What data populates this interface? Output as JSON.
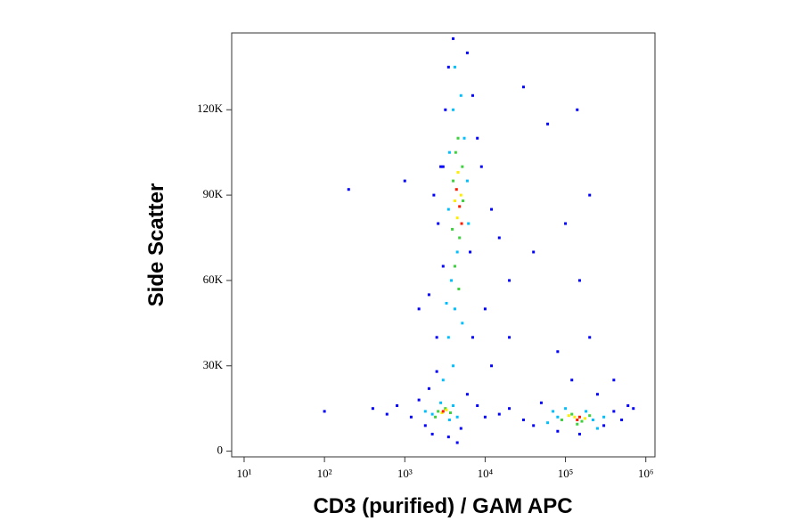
{
  "chart_data": {
    "type": "scatter",
    "xlabel": "CD3 (purified) / GAM APC",
    "ylabel": "Side Scatter",
    "xscale": "log",
    "xlim": [
      7,
      1300000
    ],
    "ylim": [
      -2000,
      147000
    ],
    "xticks": [
      {
        "value": 10,
        "label": "10¹"
      },
      {
        "value": 100,
        "label": "10²"
      },
      {
        "value": 1000,
        "label": "10³"
      },
      {
        "value": 10000,
        "label": "10⁴"
      },
      {
        "value": 100000,
        "label": "10⁵"
      },
      {
        "value": 1000000,
        "label": "10⁶"
      }
    ],
    "yticks": [
      0,
      {
        "value": 30000,
        "label": "30K"
      },
      {
        "value": 60000,
        "label": "60K"
      },
      {
        "value": 90000,
        "label": "90K"
      },
      {
        "value": 120000,
        "label": "120K"
      }
    ],
    "series": [
      {
        "color": "#0000ff",
        "x": [
          400,
          600,
          800,
          1200,
          1500,
          1800,
          2000,
          2200,
          3500,
          5000,
          6000,
          8000,
          10000,
          15000,
          20000,
          30000,
          40000,
          50000,
          300000,
          400000,
          500000,
          600000,
          80000,
          150000,
          250000,
          2500,
          2000,
          3000,
          2600,
          2800,
          3200,
          3500,
          4000,
          6000,
          7000,
          8000,
          9000,
          12000,
          15000,
          20000,
          10000,
          7000,
          12000,
          2500,
          3000,
          6500,
          2300,
          1500,
          200,
          1000,
          140000,
          100000,
          200000,
          60000,
          30000,
          150000,
          200000,
          80000,
          120000,
          400000,
          700000,
          100,
          4500,
          20000,
          40000
        ],
        "values": [
          15000,
          13000,
          16000,
          12000,
          18000,
          9000,
          22000,
          6000,
          5000,
          8000,
          20000,
          16000,
          12000,
          13000,
          15000,
          11000,
          9000,
          17000,
          9000,
          14000,
          11000,
          16000,
          7000,
          6000,
          20000,
          40000,
          55000,
          65000,
          80000,
          100000,
          120000,
          135000,
          145000,
          140000,
          125000,
          110000,
          100000,
          85000,
          75000,
          60000,
          50000,
          40000,
          30000,
          28000,
          100000,
          70000,
          90000,
          50000,
          92000,
          95000,
          120000,
          80000,
          90000,
          115000,
          128000,
          60000,
          40000,
          35000,
          25000,
          25000,
          15000,
          14000,
          3000,
          40000,
          70000
        ]
      },
      {
        "color": "#00bfff",
        "x": [
          2200,
          2800,
          3600,
          4000,
          1800,
          4500,
          3000,
          4000,
          3500,
          4200,
          3800,
          4500,
          3600,
          5500,
          4000,
          5000,
          6000,
          3500,
          6200,
          100000,
          180000,
          220000,
          80000,
          300000,
          60000,
          250000,
          4200,
          5200,
          3300,
          70000
        ],
        "values": [
          13000,
          17000,
          11000,
          16000,
          14000,
          12000,
          25000,
          30000,
          40000,
          50000,
          60000,
          70000,
          105000,
          110000,
          120000,
          125000,
          95000,
          85000,
          80000,
          15000,
          14000,
          11000,
          12000,
          12000,
          10000,
          8000,
          135000,
          45000,
          52000,
          14000
        ]
      },
      {
        "color": "#3ed13e",
        "x": [
          2600,
          3200,
          2400,
          3700,
          4200,
          4800,
          3900,
          4000,
          5200,
          4600,
          4300,
          5300,
          120000,
          160000,
          200000,
          90000,
          140000,
          4700
        ],
        "values": [
          14000,
          15000,
          12000,
          13500,
          65000,
          75000,
          78000,
          95000,
          100000,
          110000,
          105000,
          88000,
          13000,
          10500,
          12500,
          11000,
          9500,
          57000
        ]
      },
      {
        "color": "#ffee00",
        "x": [
          2900,
          3300,
          4500,
          5000,
          4200,
          4600,
          130000,
          175000,
          110000
        ],
        "values": [
          13500,
          14500,
          82000,
          90000,
          88000,
          98000,
          12000,
          11500,
          12500
        ]
      },
      {
        "color": "#ff1a00",
        "x": [
          3000,
          4800,
          4400,
          5100,
          150000,
          140000
        ],
        "values": [
          14000,
          86000,
          92000,
          80000,
          12000,
          11000
        ]
      }
    ]
  }
}
